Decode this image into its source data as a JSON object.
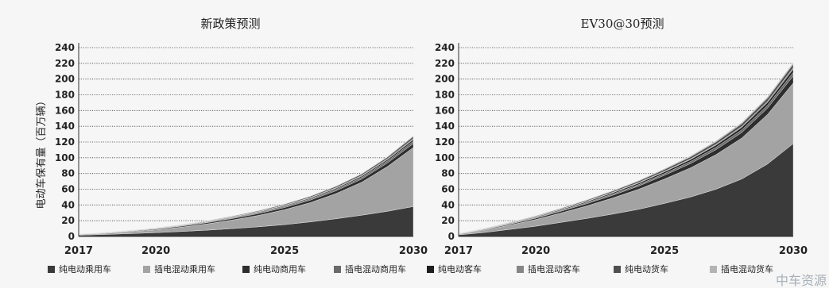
{
  "ylabel": "电动车保有量（百万辆）",
  "watermark": "中车资源",
  "colors": {
    "纯电动乘用车": "#3a3a3a",
    "插电混动乘用车": "#a3a3a3",
    "纯电动商用车": "#2e2e2e",
    "插电混动商用车": "#6a6a6a",
    "纯电动客车": "#1e1e1e",
    "插电混动客车": "#858585",
    "纯电动货车": "#4f4f4f",
    "插电混动货车": "#b4b4b4"
  },
  "legend": [
    "纯电动乘用车",
    "插电混动乘用车",
    "纯电动商用车",
    "插电混动商用车",
    "纯电动客车",
    "插电混动客车",
    "纯电动货车",
    "插电混动货车"
  ],
  "chart_data": [
    {
      "type": "area",
      "stacked": true,
      "title": "新政策预测",
      "x": [
        2017,
        2018,
        2019,
        2020,
        2021,
        2022,
        2023,
        2024,
        2025,
        2026,
        2027,
        2028,
        2029,
        2030
      ],
      "xticks": [
        2017,
        2020,
        2025,
        2030
      ],
      "ylim": [
        0,
        240
      ],
      "yticks": [
        0,
        20,
        40,
        60,
        80,
        100,
        120,
        140,
        160,
        180,
        200,
        220,
        240
      ],
      "grid": true,
      "series": [
        {
          "name": "纯电动乘用车",
          "values": [
            1.5,
            2.5,
            3.6,
            4.8,
            6.3,
            8.0,
            10.0,
            12.3,
            15.0,
            18.5,
            22.5,
            27.0,
            32.0,
            38.0
          ]
        },
        {
          "name": "插电混动乘用车",
          "values": [
            0.8,
            1.4,
            2.4,
            3.6,
            5.5,
            8.0,
            11.0,
            14.5,
            19.0,
            24.5,
            32.0,
            42.0,
            57.0,
            75.0
          ]
        },
        {
          "name": "纯电动商用车",
          "values": [
            0.3,
            0.5,
            0.7,
            1.0,
            1.3,
            1.6,
            2.0,
            2.4,
            2.8,
            3.2,
            3.6,
            4.0,
            4.5,
            5.0
          ]
        },
        {
          "name": "插电混动商用车",
          "values": [
            0.1,
            0.2,
            0.3,
            0.4,
            0.5,
            0.7,
            0.9,
            1.1,
            1.3,
            1.5,
            1.8,
            2.1,
            2.5,
            3.0
          ]
        },
        {
          "name": "纯电动客车",
          "values": [
            0.2,
            0.3,
            0.4,
            0.5,
            0.6,
            0.7,
            0.8,
            0.9,
            1.0,
            1.1,
            1.3,
            1.5,
            1.7,
            2.0
          ]
        },
        {
          "name": "插电混动客车",
          "values": [
            0.1,
            0.1,
            0.2,
            0.2,
            0.3,
            0.4,
            0.5,
            0.6,
            0.7,
            0.8,
            0.9,
            1.0,
            1.2,
            1.5
          ]
        },
        {
          "name": "纯电动货车",
          "values": [
            0.1,
            0.2,
            0.3,
            0.4,
            0.5,
            0.6,
            0.8,
            1.0,
            1.2,
            1.4,
            1.6,
            1.8,
            2.0,
            2.5
          ]
        },
        {
          "name": "插电混动货车",
          "values": [
            0.0,
            0.1,
            0.1,
            0.1,
            0.2,
            0.2,
            0.3,
            0.3,
            0.4,
            0.5,
            0.6,
            0.7,
            0.8,
            1.0
          ]
        }
      ]
    },
    {
      "type": "area",
      "stacked": true,
      "title": "EV30@30预测",
      "x": [
        2017,
        2018,
        2019,
        2020,
        2021,
        2022,
        2023,
        2024,
        2025,
        2026,
        2027,
        2028,
        2029,
        2030
      ],
      "xticks": [
        2017,
        2020,
        2025,
        2030
      ],
      "ylim": [
        0,
        240
      ],
      "yticks": [
        0,
        20,
        40,
        60,
        80,
        100,
        120,
        140,
        160,
        180,
        200,
        220,
        240
      ],
      "grid": true,
      "series": [
        {
          "name": "纯电动乘用车",
          "values": [
            2.0,
            5.0,
            9.0,
            13.0,
            18.0,
            23.0,
            28.5,
            34.5,
            42.0,
            50.0,
            60.0,
            73.0,
            92.0,
            118.0
          ]
        },
        {
          "name": "插电混动乘用车",
          "values": [
            1.0,
            3.0,
            5.5,
            8.5,
            12.0,
            16.0,
            20.5,
            25.5,
            31.0,
            37.0,
            44.0,
            52.0,
            63.0,
            77.0
          ]
        },
        {
          "name": "纯电动商用车",
          "values": [
            0.4,
            0.8,
            1.2,
            1.7,
            2.3,
            2.9,
            3.5,
            4.1,
            4.8,
            5.5,
            6.3,
            7.1,
            8.0,
            9.0
          ]
        },
        {
          "name": "插电混动商用车",
          "values": [
            0.2,
            0.4,
            0.6,
            0.8,
            1.0,
            1.3,
            1.6,
            1.9,
            2.2,
            2.6,
            3.0,
            3.4,
            3.8,
            4.5
          ]
        },
        {
          "name": "纯电动客车",
          "values": [
            0.3,
            0.5,
            0.7,
            0.9,
            1.1,
            1.3,
            1.5,
            1.8,
            2.1,
            2.4,
            2.7,
            3.0,
            3.4,
            4.0
          ]
        },
        {
          "name": "插电混动客车",
          "values": [
            0.1,
            0.2,
            0.3,
            0.4,
            0.5,
            0.6,
            0.7,
            0.8,
            0.9,
            1.0,
            1.2,
            1.4,
            1.6,
            2.0
          ]
        },
        {
          "name": "纯电动货车",
          "values": [
            0.2,
            0.4,
            0.6,
            0.8,
            1.0,
            1.3,
            1.6,
            1.9,
            2.2,
            2.5,
            2.9,
            3.3,
            3.8,
            4.5
          ]
        },
        {
          "name": "插电混动货车",
          "values": [
            0.1,
            0.2,
            0.3,
            0.4,
            0.5,
            0.6,
            0.7,
            0.8,
            1.0,
            1.2,
            1.4,
            1.6,
            1.8,
            2.0
          ]
        }
      ]
    }
  ]
}
